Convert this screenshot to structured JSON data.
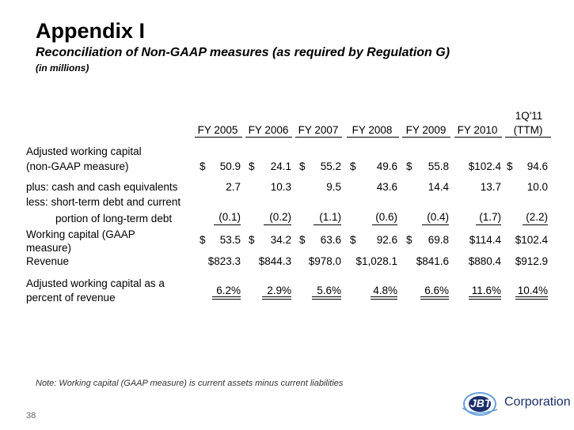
{
  "title": "Appendix I",
  "subtitle": "Reconciliation of Non-GAAP measures (as required by Regulation G)",
  "units": "(in millions)",
  "header": {
    "ttm_top": "1Q'11",
    "cols": [
      "FY 2005",
      "FY 2006",
      "FY 2007",
      "FY 2008",
      "FY 2009",
      "FY 2010",
      "(TTM)"
    ]
  },
  "rows": {
    "adj_wc_label1": "Adjusted working capital",
    "adj_wc_label2": "(non-GAAP measure)",
    "adj_wc": [
      "50.9",
      "24.1",
      "55.2",
      "49.6",
      "55.8",
      "$102.4",
      "94.6"
    ],
    "plus_label": "plus:  cash and cash equivalents",
    "plus": [
      "2.7",
      "10.3",
      "9.5",
      "43.6",
      "14.4",
      "13.7",
      "10.0"
    ],
    "less_label1": "less:  short-term debt and current",
    "less_label2": "portion of long-term debt",
    "less": [
      "(0.1)",
      "(0.2)",
      "(1.1)",
      "(0.6)",
      "(0.4)",
      "(1.7)",
      "(2.2)"
    ],
    "wc_label1": "Working capital (GAAP",
    "wc_label2": "measure)",
    "wc": [
      "53.5",
      "34.2",
      "63.6",
      "92.6",
      "69.8",
      "$114.4",
      "$102.4"
    ],
    "rev_label": "Revenue",
    "rev": [
      "$823.3",
      "$844.3",
      "$978.0",
      "$1,028.1",
      "$841.6",
      "$880.4",
      "$912.9"
    ],
    "pct_label1": "Adjusted working capital as a",
    "pct_label2": "percent of revenue",
    "pct": [
      "6.2%",
      "2.9%",
      "5.6%",
      "4.8%",
      "6.6%",
      "11.6%",
      "10.4%"
    ],
    "dollar_sign": "$"
  },
  "note": "Note:  Working capital (GAAP measure) is current assets minus current liabilities",
  "page_number": "38",
  "logo": {
    "mark": "JBT",
    "name": "Corporation",
    "brand_color": "#1a2f6b",
    "accent_color": "#6aa0d8"
  }
}
